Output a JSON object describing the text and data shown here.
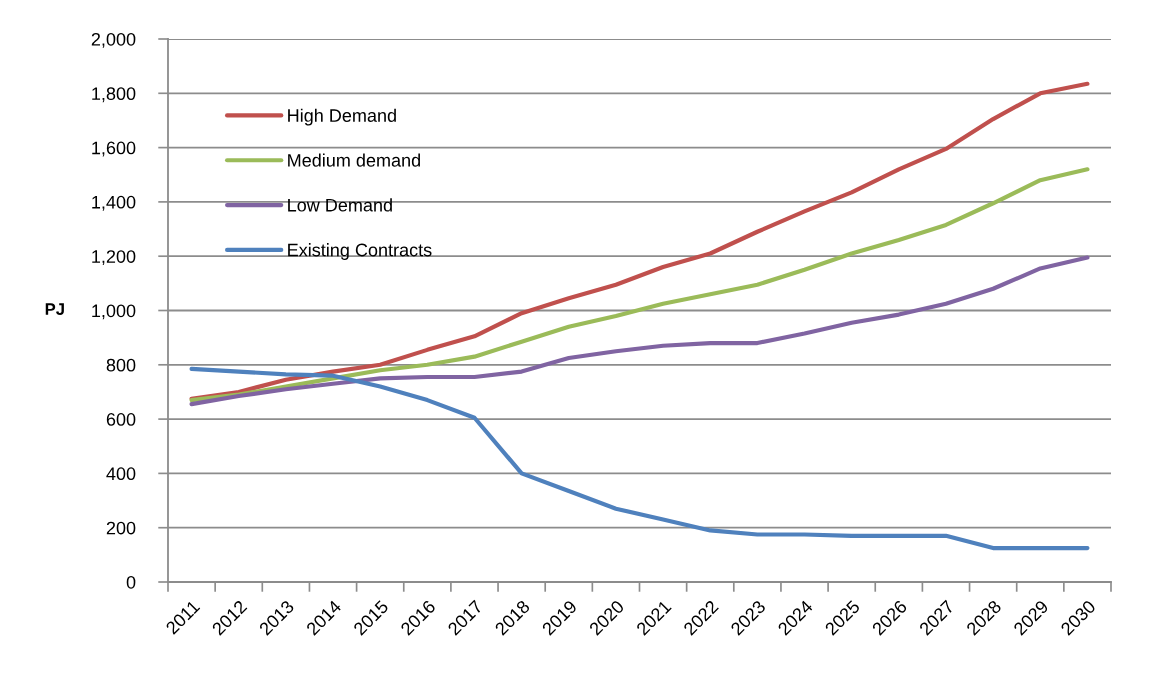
{
  "chart_data": {
    "type": "line",
    "ylabel": "PJ",
    "categories": [
      "2011",
      "2012",
      "2013",
      "2014",
      "2015",
      "2016",
      "2017",
      "2018",
      "2019",
      "2020",
      "2021",
      "2022",
      "2023",
      "2024",
      "2025",
      "2026",
      "2027",
      "2028",
      "2029",
      "2030"
    ],
    "ylim": [
      0,
      2000
    ],
    "yticks": [
      0,
      200,
      400,
      600,
      800,
      {
        "value": 1000,
        "label": "1,000"
      },
      {
        "value": 1200,
        "label": "1,200"
      },
      {
        "value": 1400,
        "label": "1,400"
      },
      {
        "value": 1600,
        "label": "1,600"
      },
      {
        "value": 1800,
        "label": "1,800"
      },
      {
        "value": 2000,
        "label": "2,000"
      }
    ],
    "grid": "y",
    "legend": "top left",
    "line_style": "solid",
    "series": [
      {
        "name": "High Demand",
        "color": "#c0504d",
        "values": [
          675,
          700,
          745,
          775,
          800,
          855,
          905,
          990,
          1045,
          1095,
          1160,
          1210,
          1290,
          1365,
          1435,
          1520,
          1595,
          1705,
          1800,
          1835
        ]
      },
      {
        "name": "Medium demand",
        "color": "#9bbb59",
        "values": [
          670,
          690,
          720,
          750,
          780,
          800,
          830,
          885,
          940,
          980,
          1025,
          1060,
          1095,
          1150,
          1210,
          1260,
          1315,
          1395,
          1480,
          1520
        ]
      },
      {
        "name": "Low Demand",
        "color": "#8064a2",
        "values": [
          655,
          685,
          710,
          730,
          750,
          755,
          755,
          775,
          825,
          850,
          870,
          880,
          880,
          915,
          955,
          985,
          1025,
          1080,
          1155,
          1195
        ]
      },
      {
        "name": "Existing Contracts",
        "color": "#4f81bd",
        "values": [
          785,
          775,
          765,
          760,
          720,
          670,
          605,
          400,
          335,
          270,
          230,
          190,
          175,
          175,
          170,
          170,
          170,
          125,
          125,
          125
        ]
      }
    ]
  }
}
